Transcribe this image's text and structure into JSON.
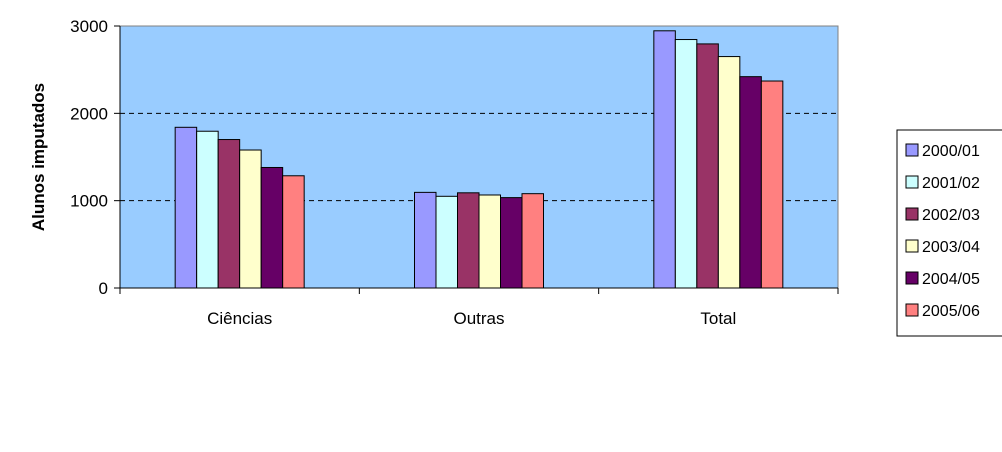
{
  "chart_data": {
    "type": "bar",
    "title": "",
    "xlabel": "",
    "ylabel": "Alunos imputados",
    "categories": [
      "Ciências",
      "Outras",
      "Total"
    ],
    "ylim": [
      0,
      3000
    ],
    "yticks": [
      "0",
      "1000",
      "2000",
      "3000"
    ],
    "grid": "dashed horizontal at 1000, 2000",
    "legend_position": "right",
    "plot_background": "#99ccff",
    "series": [
      {
        "name": "2000/01",
        "color": "#9999ff",
        "values": [
          1840,
          1095,
          2945
        ]
      },
      {
        "name": "2001/02",
        "color": "#ccffff",
        "values": [
          1795,
          1050,
          2845
        ]
      },
      {
        "name": "2002/03",
        "color": "#993366",
        "values": [
          1700,
          1090,
          2795
        ]
      },
      {
        "name": "2003/04",
        "color": "#ffffcc",
        "values": [
          1580,
          1065,
          2650
        ]
      },
      {
        "name": "2004/05",
        "color": "#660066",
        "values": [
          1380,
          1035,
          2420
        ]
      },
      {
        "name": "2005/06",
        "color": "#ff8080",
        "values": [
          1285,
          1080,
          2370
        ]
      }
    ]
  }
}
